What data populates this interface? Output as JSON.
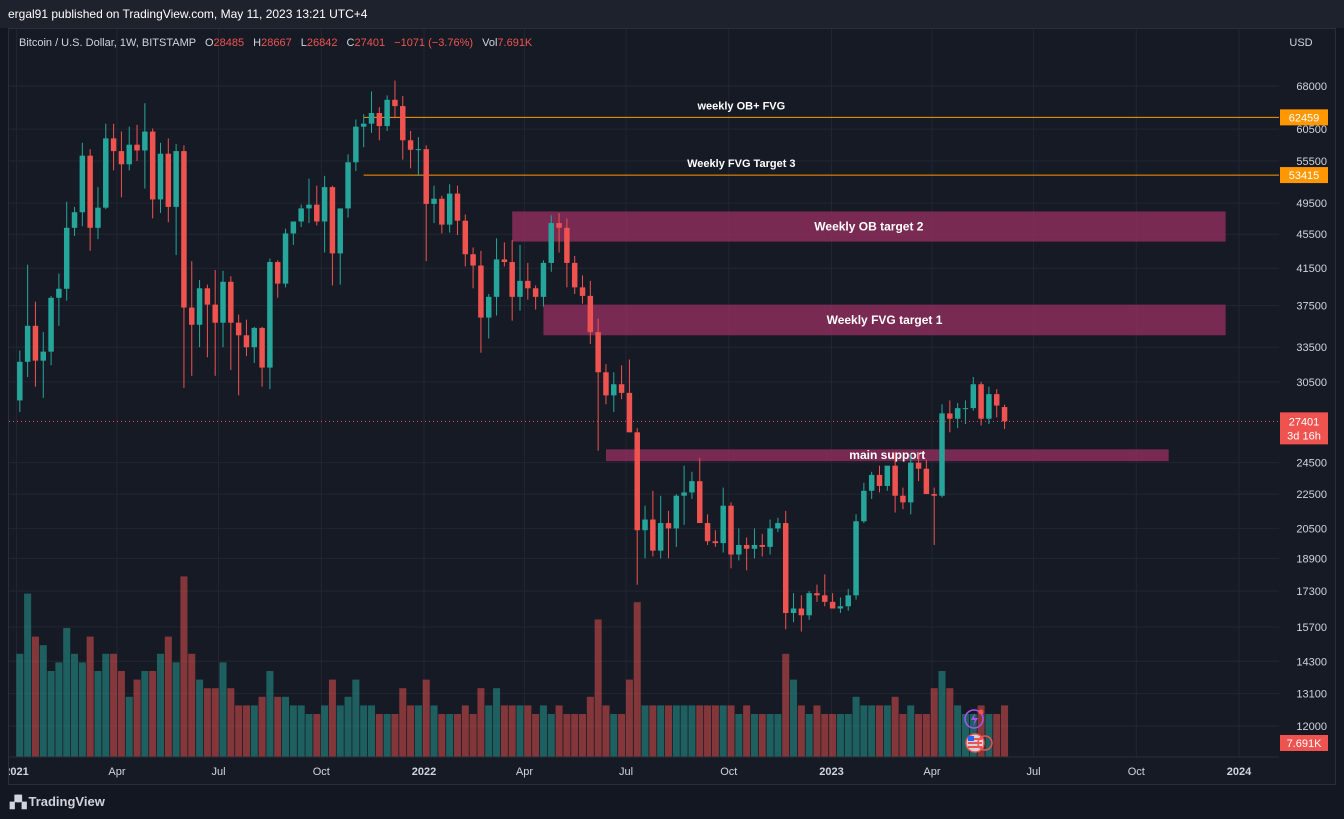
{
  "header": {
    "published": "ergal91 published on TradingView.com, May 11, 2023 13:21 UTC+4"
  },
  "footer": {
    "brand": "TradingView",
    "logo_icon": "tradingview-logo-icon"
  },
  "legend": {
    "symbol": "Bitcoin / U.S. Dollar, 1W, BITSTAMP",
    "o_label": "O",
    "o_value": "28485",
    "h_label": "H",
    "h_value": "28667",
    "l_label": "L",
    "l_value": "26842",
    "c_label": "C",
    "c_value": "27401",
    "change": "−1071 (−3.76%)",
    "vol_label": "Vol",
    "vol_value": "7.691K"
  },
  "colors": {
    "up": "#26a69a",
    "down": "#ef5350",
    "zone": "#8b2e5a",
    "line": "#ff9800",
    "bg": "#161a25",
    "grid": "#232632"
  },
  "chart_data": {
    "type": "candlestick",
    "currency": "USD",
    "scale": "log",
    "y_ticks": [
      68000,
      60500,
      55500,
      49500,
      45500,
      41500,
      37500,
      33500,
      30500,
      24500,
      22500,
      20500,
      18900,
      17300,
      15700,
      14300,
      13100,
      12000
    ],
    "x_ticks": [
      "2021",
      "Apr",
      "Jul",
      "Oct",
      "2022",
      "Apr",
      "Jul",
      "Oct",
      "2023",
      "Apr",
      "Jul",
      "Oct",
      "2024"
    ],
    "x_range": [
      "2020-12-28",
      "2024-01-01"
    ],
    "last_price": {
      "value": 27401,
      "label": "27401",
      "countdown": "3d 16h"
    },
    "volume_label": "7.691K",
    "levels": [
      {
        "name": "weekly OB+ FVG",
        "price": 62459,
        "label": "62459",
        "from": "2021-11-08"
      },
      {
        "name": "Weekly FVG Target 3",
        "price": 53415,
        "label": "53415",
        "from": "2021-11-08"
      }
    ],
    "zones": [
      {
        "name": "Weekly OB target 2",
        "low": 44600,
        "high": 48400,
        "from": "2022-03-21",
        "to": "2023-12-20"
      },
      {
        "name": "Weekly FVG target 1",
        "low": 34600,
        "high": 37600,
        "from": "2022-04-18",
        "to": "2023-12-20"
      },
      {
        "name": "main support",
        "low": 24600,
        "high": 25400,
        "from": "2022-06-13",
        "to": "2023-10-30"
      }
    ],
    "series": [
      {
        "name": "price",
        "ohlcv": [
          [
            29000,
            33200,
            28100,
            32200,
            12
          ],
          [
            32200,
            41900,
            30900,
            35500,
            19
          ],
          [
            35500,
            37900,
            30100,
            32300,
            14
          ],
          [
            32300,
            34900,
            29200,
            33100,
            13
          ],
          [
            33100,
            38500,
            31900,
            38300,
            10
          ],
          [
            38300,
            40900,
            35500,
            39250,
            11
          ],
          [
            39250,
            49700,
            38000,
            46300,
            15
          ],
          [
            46300,
            49000,
            45300,
            48300,
            12
          ],
          [
            48300,
            58300,
            46500,
            56300,
            11
          ],
          [
            56300,
            57300,
            43500,
            46300,
            14
          ],
          [
            46300,
            51700,
            44900,
            48900,
            10
          ],
          [
            48900,
            61400,
            48700,
            59000,
            12
          ],
          [
            59000,
            61400,
            54100,
            57000,
            12
          ],
          [
            57000,
            60100,
            50300,
            55000,
            10
          ],
          [
            55000,
            60900,
            54100,
            58000,
            7
          ],
          [
            58000,
            61200,
            55500,
            57100,
            9
          ],
          [
            57100,
            64900,
            51500,
            60100,
            10
          ],
          [
            60100,
            60600,
            47500,
            50000,
            10
          ],
          [
            50000,
            58300,
            48200,
            56600,
            12
          ],
          [
            56600,
            59000,
            47000,
            49000,
            14
          ],
          [
            49000,
            58100,
            43000,
            57000,
            11
          ],
          [
            57000,
            57900,
            30000,
            37300,
            21
          ],
          [
            37300,
            42300,
            31000,
            35600,
            12
          ],
          [
            35600,
            40200,
            33500,
            39300,
            9
          ],
          [
            39300,
            39700,
            32600,
            37600,
            8
          ],
          [
            37600,
            41300,
            31000,
            35800,
            8
          ],
          [
            35800,
            41200,
            33500,
            40000,
            11
          ],
          [
            40000,
            40600,
            31500,
            35800,
            8
          ],
          [
            35800,
            36600,
            29400,
            34600,
            6
          ],
          [
            34600,
            36100,
            32700,
            33500,
            6
          ],
          [
            33500,
            35400,
            32100,
            35300,
            6
          ],
          [
            35300,
            35400,
            30100,
            31700,
            7
          ],
          [
            31700,
            42600,
            29900,
            42200,
            10
          ],
          [
            42200,
            42400,
            38300,
            39800,
            7
          ],
          [
            39800,
            46200,
            39400,
            45600,
            7
          ],
          [
            45600,
            47100,
            44200,
            47100,
            6
          ],
          [
            47100,
            49300,
            46400,
            48800,
            6
          ],
          [
            48800,
            52900,
            46900,
            49300,
            5
          ],
          [
            49300,
            51900,
            46600,
            47100,
            5
          ],
          [
            47100,
            53300,
            43300,
            51700,
            6
          ],
          [
            51700,
            51900,
            39600,
            43200,
            9
          ],
          [
            43200,
            47300,
            39700,
            48800,
            6
          ],
          [
            48800,
            56500,
            47600,
            55300,
            7
          ],
          [
            55300,
            62100,
            54000,
            60900,
            9
          ],
          [
            60900,
            63000,
            57600,
            61400,
            6
          ],
          [
            61400,
            67000,
            59900,
            63200,
            6
          ],
          [
            63200,
            64200,
            58700,
            61000,
            5
          ],
          [
            61000,
            66300,
            60200,
            65500,
            5
          ],
          [
            65500,
            69000,
            62300,
            64400,
            5
          ],
          [
            64400,
            66200,
            55700,
            58700,
            8
          ],
          [
            58700,
            60200,
            54400,
            57200,
            6
          ],
          [
            57200,
            59200,
            53300,
            57300,
            6
          ],
          [
            57300,
            57900,
            42300,
            49400,
            9
          ],
          [
            49400,
            51900,
            46900,
            50100,
            6
          ],
          [
            50100,
            50500,
            45600,
            46700,
            5
          ],
          [
            46700,
            52100,
            45700,
            50800,
            5
          ],
          [
            50800,
            51900,
            45400,
            47200,
            5
          ],
          [
            47200,
            48000,
            41700,
            43100,
            6
          ],
          [
            43100,
            43900,
            39300,
            41800,
            5
          ],
          [
            41800,
            43500,
            33000,
            36300,
            8
          ],
          [
            36300,
            38700,
            34300,
            38400,
            6
          ],
          [
            38400,
            45000,
            36500,
            42500,
            8
          ],
          [
            42500,
            44500,
            41700,
            42200,
            6
          ],
          [
            42200,
            44800,
            36000,
            38400,
            6
          ],
          [
            38400,
            44200,
            37000,
            40100,
            6
          ],
          [
            40100,
            42100,
            38100,
            39300,
            6
          ],
          [
            39300,
            39600,
            37100,
            38400,
            5
          ],
          [
            38400,
            42400,
            37400,
            42100,
            6
          ],
          [
            42100,
            47900,
            41100,
            46900,
            5
          ],
          [
            46900,
            48200,
            43300,
            46300,
            6
          ],
          [
            46300,
            47500,
            39400,
            42100,
            5
          ],
          [
            42100,
            42900,
            38700,
            39400,
            5
          ],
          [
            39400,
            40700,
            37700,
            38500,
            5
          ],
          [
            38500,
            40100,
            33800,
            34900,
            7
          ],
          [
            34900,
            36200,
            25300,
            31300,
            16
          ],
          [
            31300,
            32000,
            28700,
            29400,
            6
          ],
          [
            29400,
            31300,
            28100,
            30300,
            5
          ],
          [
            30300,
            31900,
            29100,
            29600,
            5
          ],
          [
            29600,
            32400,
            26600,
            26600,
            9
          ],
          [
            26600,
            26900,
            17600,
            20400,
            18
          ],
          [
            20400,
            21800,
            18900,
            21000,
            6
          ],
          [
            21000,
            22700,
            19000,
            19300,
            6
          ],
          [
            19300,
            22400,
            18900,
            20800,
            6
          ],
          [
            20800,
            21500,
            18900,
            20500,
            6
          ],
          [
            20500,
            22500,
            19500,
            22400,
            6
          ],
          [
            22400,
            24300,
            20700,
            22600,
            6
          ],
          [
            22600,
            23900,
            22200,
            23300,
            6
          ],
          [
            23300,
            24800,
            20900,
            20800,
            6
          ],
          [
            20800,
            21300,
            19600,
            19800,
            6
          ],
          [
            19800,
            20400,
            19500,
            19700,
            6
          ],
          [
            19700,
            22900,
            19200,
            21800,
            6
          ],
          [
            21800,
            22000,
            18400,
            19100,
            6
          ],
          [
            19100,
            20500,
            18800,
            19600,
            5
          ],
          [
            19600,
            20000,
            18300,
            19400,
            6
          ],
          [
            19400,
            20500,
            18900,
            19600,
            5
          ],
          [
            19600,
            20200,
            19000,
            19500,
            5
          ],
          [
            19500,
            21000,
            19100,
            20500,
            5
          ],
          [
            20500,
            21100,
            20300,
            20800,
            5
          ],
          [
            20800,
            21500,
            15600,
            16300,
            12
          ],
          [
            16300,
            17200,
            15900,
            16500,
            9
          ],
          [
            16500,
            17100,
            15500,
            16200,
            6
          ],
          [
            16200,
            17300,
            16000,
            17200,
            5
          ],
          [
            17200,
            17600,
            16800,
            17100,
            6
          ],
          [
            17100,
            18100,
            16600,
            16800,
            5
          ],
          [
            16800,
            17200,
            16500,
            16500,
            5
          ],
          [
            16500,
            17000,
            16300,
            16600,
            5
          ],
          [
            16600,
            17400,
            16400,
            17100,
            5
          ],
          [
            17100,
            21300,
            16900,
            20900,
            7
          ],
          [
            20900,
            23200,
            20800,
            22700,
            6
          ],
          [
            22700,
            23900,
            22200,
            23700,
            6
          ],
          [
            23700,
            24300,
            22600,
            23000,
            6
          ],
          [
            23000,
            24300,
            22700,
            24300,
            6
          ],
          [
            24300,
            25200,
            21400,
            22400,
            7
          ],
          [
            22400,
            22900,
            21600,
            22000,
            5
          ],
          [
            22000,
            25100,
            21300,
            24500,
            6
          ],
          [
            24500,
            25200,
            23300,
            24100,
            5
          ],
          [
            24100,
            24700,
            22700,
            22500,
            5
          ],
          [
            22500,
            22900,
            19600,
            22400,
            8
          ],
          [
            22400,
            28700,
            22300,
            28000,
            10
          ],
          [
            28000,
            29000,
            26600,
            27600,
            8
          ],
          [
            27600,
            28800,
            26900,
            28400,
            6
          ],
          [
            28400,
            29000,
            27200,
            28400,
            5
          ],
          [
            28400,
            30900,
            28200,
            30300,
            5
          ],
          [
            30300,
            30500,
            27100,
            27600,
            6
          ],
          [
            27600,
            30100,
            27200,
            29500,
            5
          ],
          [
            29500,
            29900,
            27700,
            28600,
            5
          ],
          [
            28485,
            28667,
            26842,
            27401,
            6
          ]
        ]
      }
    ]
  }
}
